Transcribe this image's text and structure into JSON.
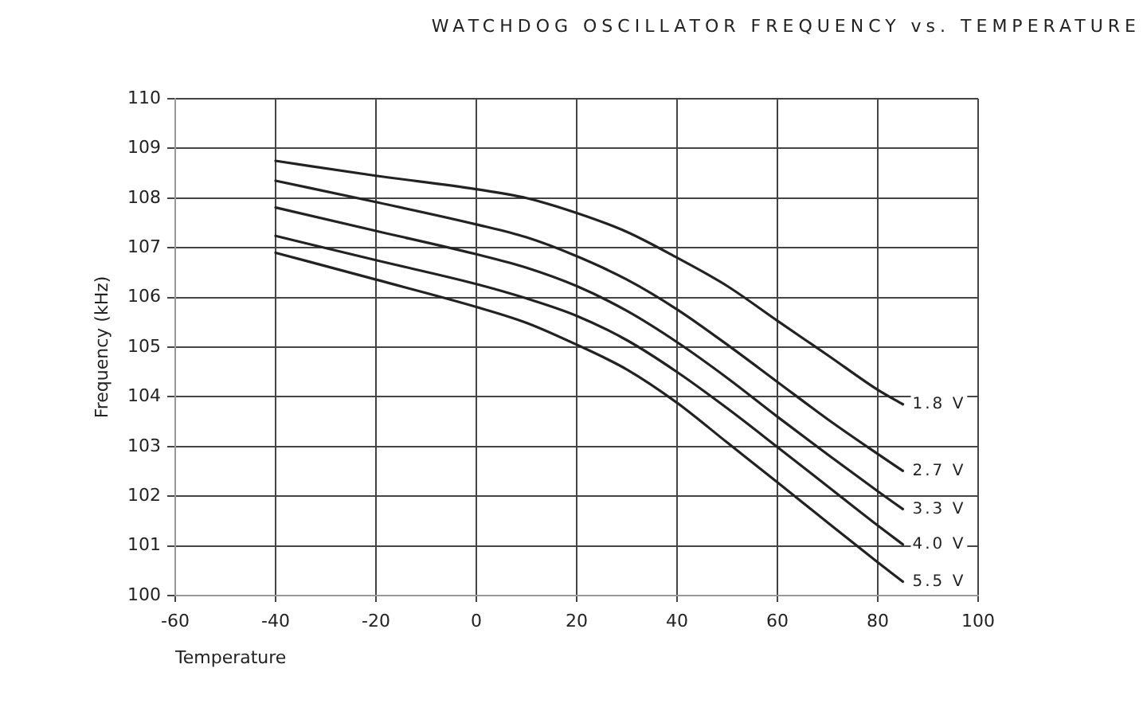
{
  "chart_data": {
    "type": "line",
    "title": "WATCHDOG OSCILLATOR FREQUENCY vs. TEMPERATURE",
    "xlabel": "Temperature",
    "ylabel": "Frequency (kHz)",
    "x": [
      -40,
      -20,
      0,
      10,
      20,
      30,
      40,
      50,
      60,
      70,
      80,
      85
    ],
    "series": [
      {
        "name": "1.8 V",
        "color": "#222222",
        "values": [
          108.75,
          108.45,
          108.18,
          108.0,
          107.7,
          107.32,
          106.8,
          106.23,
          105.53,
          104.84,
          104.14,
          103.85
        ]
      },
      {
        "name": "2.7 V",
        "color": "#222222",
        "values": [
          108.35,
          107.92,
          107.47,
          107.21,
          106.83,
          106.36,
          105.76,
          105.05,
          104.3,
          103.55,
          102.85,
          102.51
        ]
      },
      {
        "name": "3.3 V",
        "color": "#222222",
        "values": [
          107.81,
          107.34,
          106.87,
          106.6,
          106.23,
          105.73,
          105.1,
          104.38,
          103.6,
          102.84,
          102.1,
          101.74
        ]
      },
      {
        "name": "4.0 V",
        "color": "#222222",
        "values": [
          107.24,
          106.75,
          106.27,
          105.98,
          105.63,
          105.14,
          104.5,
          103.77,
          102.99,
          102.2,
          101.41,
          101.03
        ]
      },
      {
        "name": "5.5 V",
        "color": "#222222",
        "values": [
          106.9,
          106.36,
          105.81,
          105.49,
          105.05,
          104.55,
          103.88,
          103.08,
          102.28,
          101.47,
          100.67,
          100.28
        ]
      }
    ],
    "xlim": [
      -60,
      100
    ],
    "xticks": [
      -60,
      -40,
      -20,
      0,
      20,
      40,
      60,
      80,
      100
    ],
    "ylim": [
      100,
      110
    ],
    "yticks": [
      100,
      101,
      102,
      103,
      104,
      105,
      106,
      107,
      108,
      109,
      110
    ],
    "grid": true,
    "marker": "none",
    "line_style": "solid"
  }
}
